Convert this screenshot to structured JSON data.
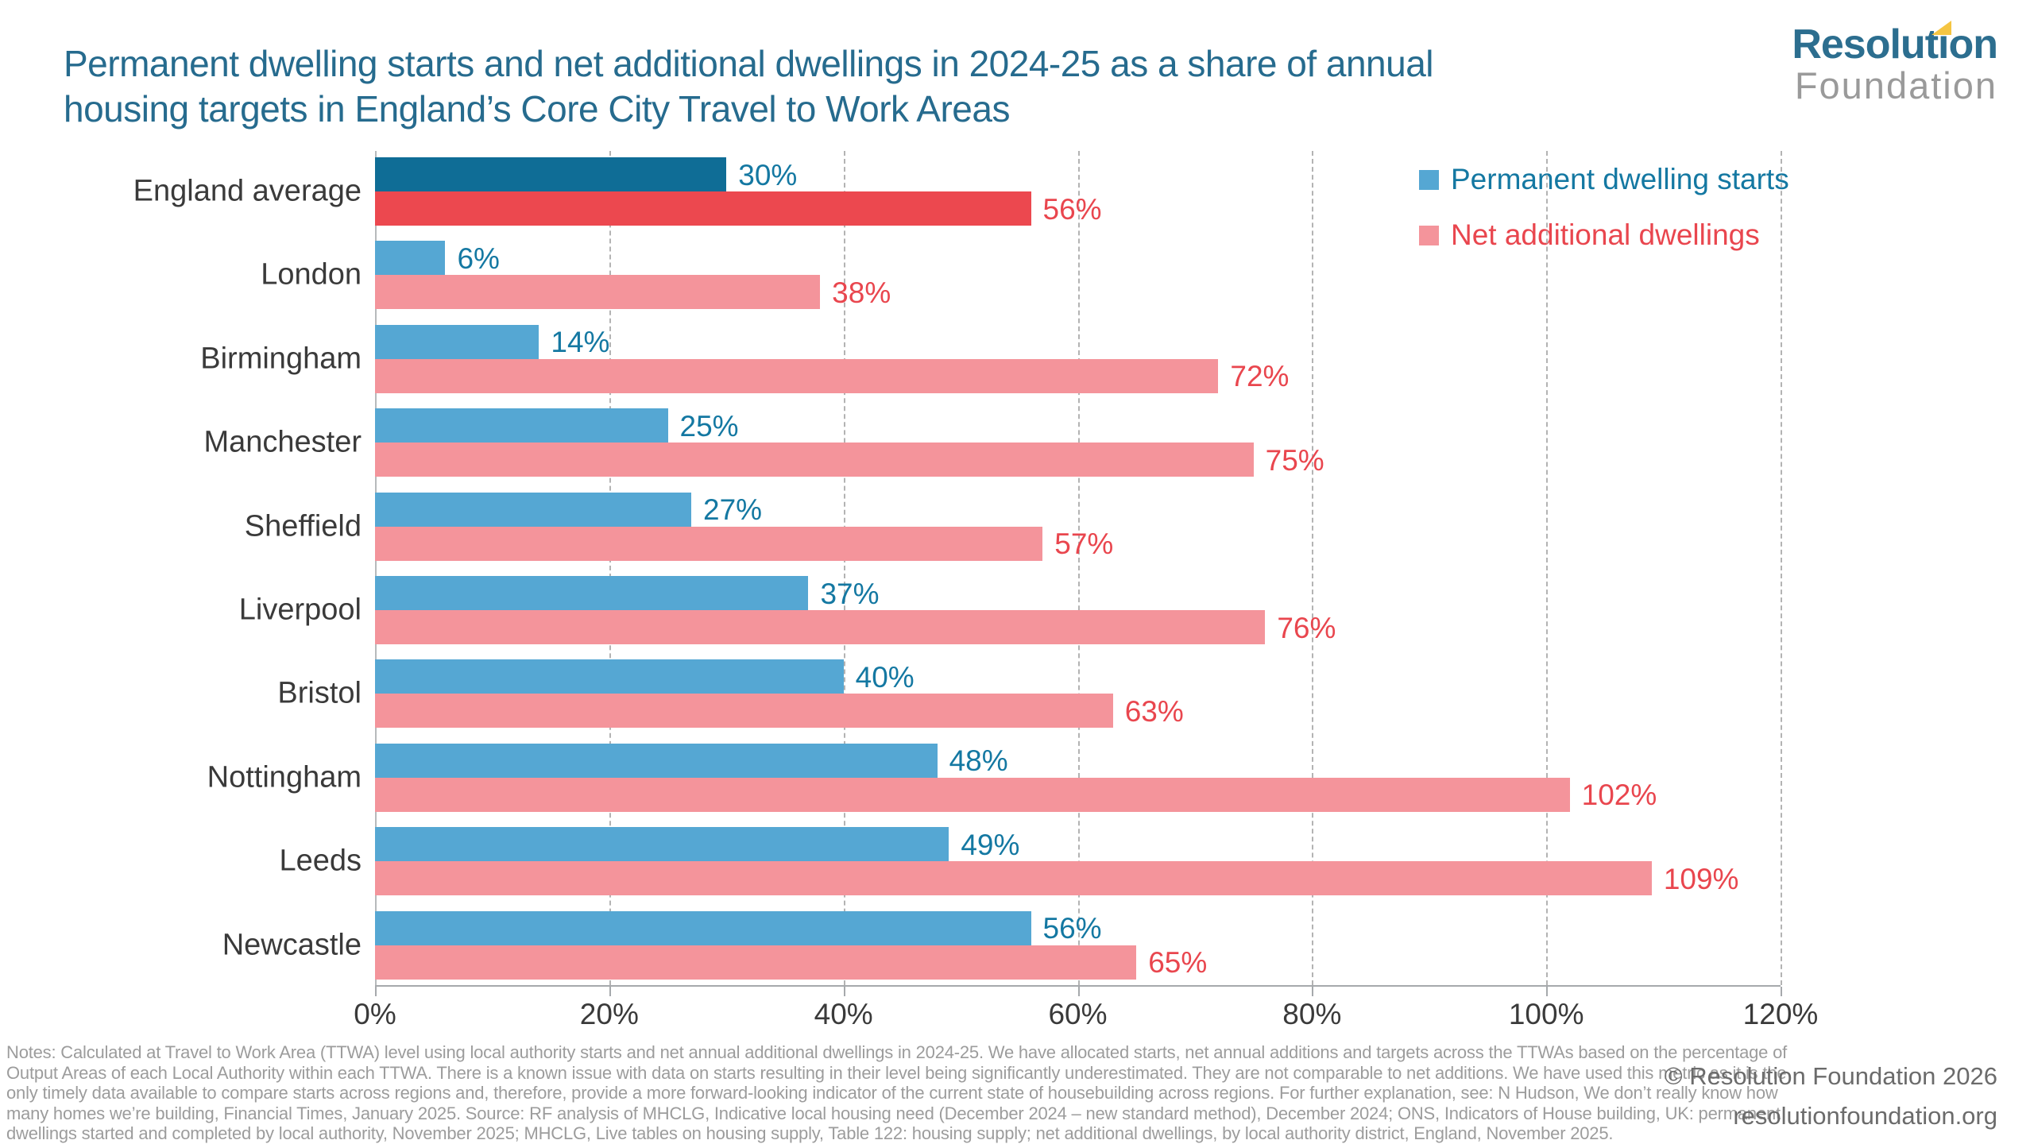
{
  "header": {
    "title_line1": "Permanent dwelling starts and net additional dwellings in 2024-25 as a share of annual",
    "title_line2": "housing targets in England’s Core City Travel to Work Areas",
    "logo": {
      "line1": "Resolution",
      "line2": "Foundation"
    }
  },
  "colors": {
    "title": "#266B8E",
    "starts_bar": "#55A7D3",
    "starts_bar_highlight": "#0F6D96",
    "starts_label": "#1478A2",
    "net_bar": "#F4949B",
    "net_bar_highlight": "#EC484F",
    "net_label": "#E9464E",
    "logo_yellow": "#F5C542"
  },
  "chart_data": {
    "type": "bar",
    "orientation": "horizontal",
    "title": "Permanent dwelling starts and net additional dwellings in 2024-25 as a share of annual housing targets in England’s Core City Travel to Work Areas",
    "categories": [
      "England average",
      "London",
      "Birmingham",
      "Manchester",
      "Sheffield",
      "Liverpool",
      "Bristol",
      "Nottingham",
      "Leeds",
      "Newcastle"
    ],
    "series": [
      {
        "name": "Permanent dwelling starts",
        "values": [
          30,
          6,
          14,
          25,
          27,
          37,
          40,
          48,
          49,
          56
        ]
      },
      {
        "name": "Net additional dwellings",
        "values": [
          56,
          38,
          72,
          75,
          57,
          76,
          63,
          102,
          109,
          65
        ]
      }
    ],
    "value_suffix": "%",
    "highlight_category": "England average",
    "xlim": [
      0,
      120
    ],
    "x_ticks": [
      "0%",
      "20%",
      "40%",
      "60%",
      "80%",
      "100%",
      "120%"
    ],
    "grid": "vertical-dashed",
    "legend_position": "top-right"
  },
  "footer": {
    "notes_lines": [
      "Notes: Calculated at Travel to Work Area (TTWA) level using local authority starts and net annual additional dwellings in 2024-25. We have allocated starts, net annual additions and targets across the TTWAs based on the percentage of",
      "Output Areas of each Local Authority within each TTWA. There is a known issue with data on starts resulting in their level being significantly underestimated. They are not comparable to net additions. We have used this metric as it is the",
      "only timely data available to compare starts across regions and, therefore, provide a more forward-looking indicator of the current state of housebuilding across regions. For further explanation, see: N Hudson, We don’t really know how",
      "many homes we’re building, Financial Times, January 2025. Source: RF analysis of MHCLG, Indicative local housing need (December 2024 – new standard method), December 2024; ONS, Indicators of House building, UK: permanent",
      "dwellings started and completed by local authority, November 2025; MHCLG, Live tables on housing supply, Table 122: housing supply; net additional dwellings, by local authority district, England, November 2025."
    ],
    "copyright": "© Resolution Foundation 2026",
    "website": "resolutionfoundation.org"
  }
}
